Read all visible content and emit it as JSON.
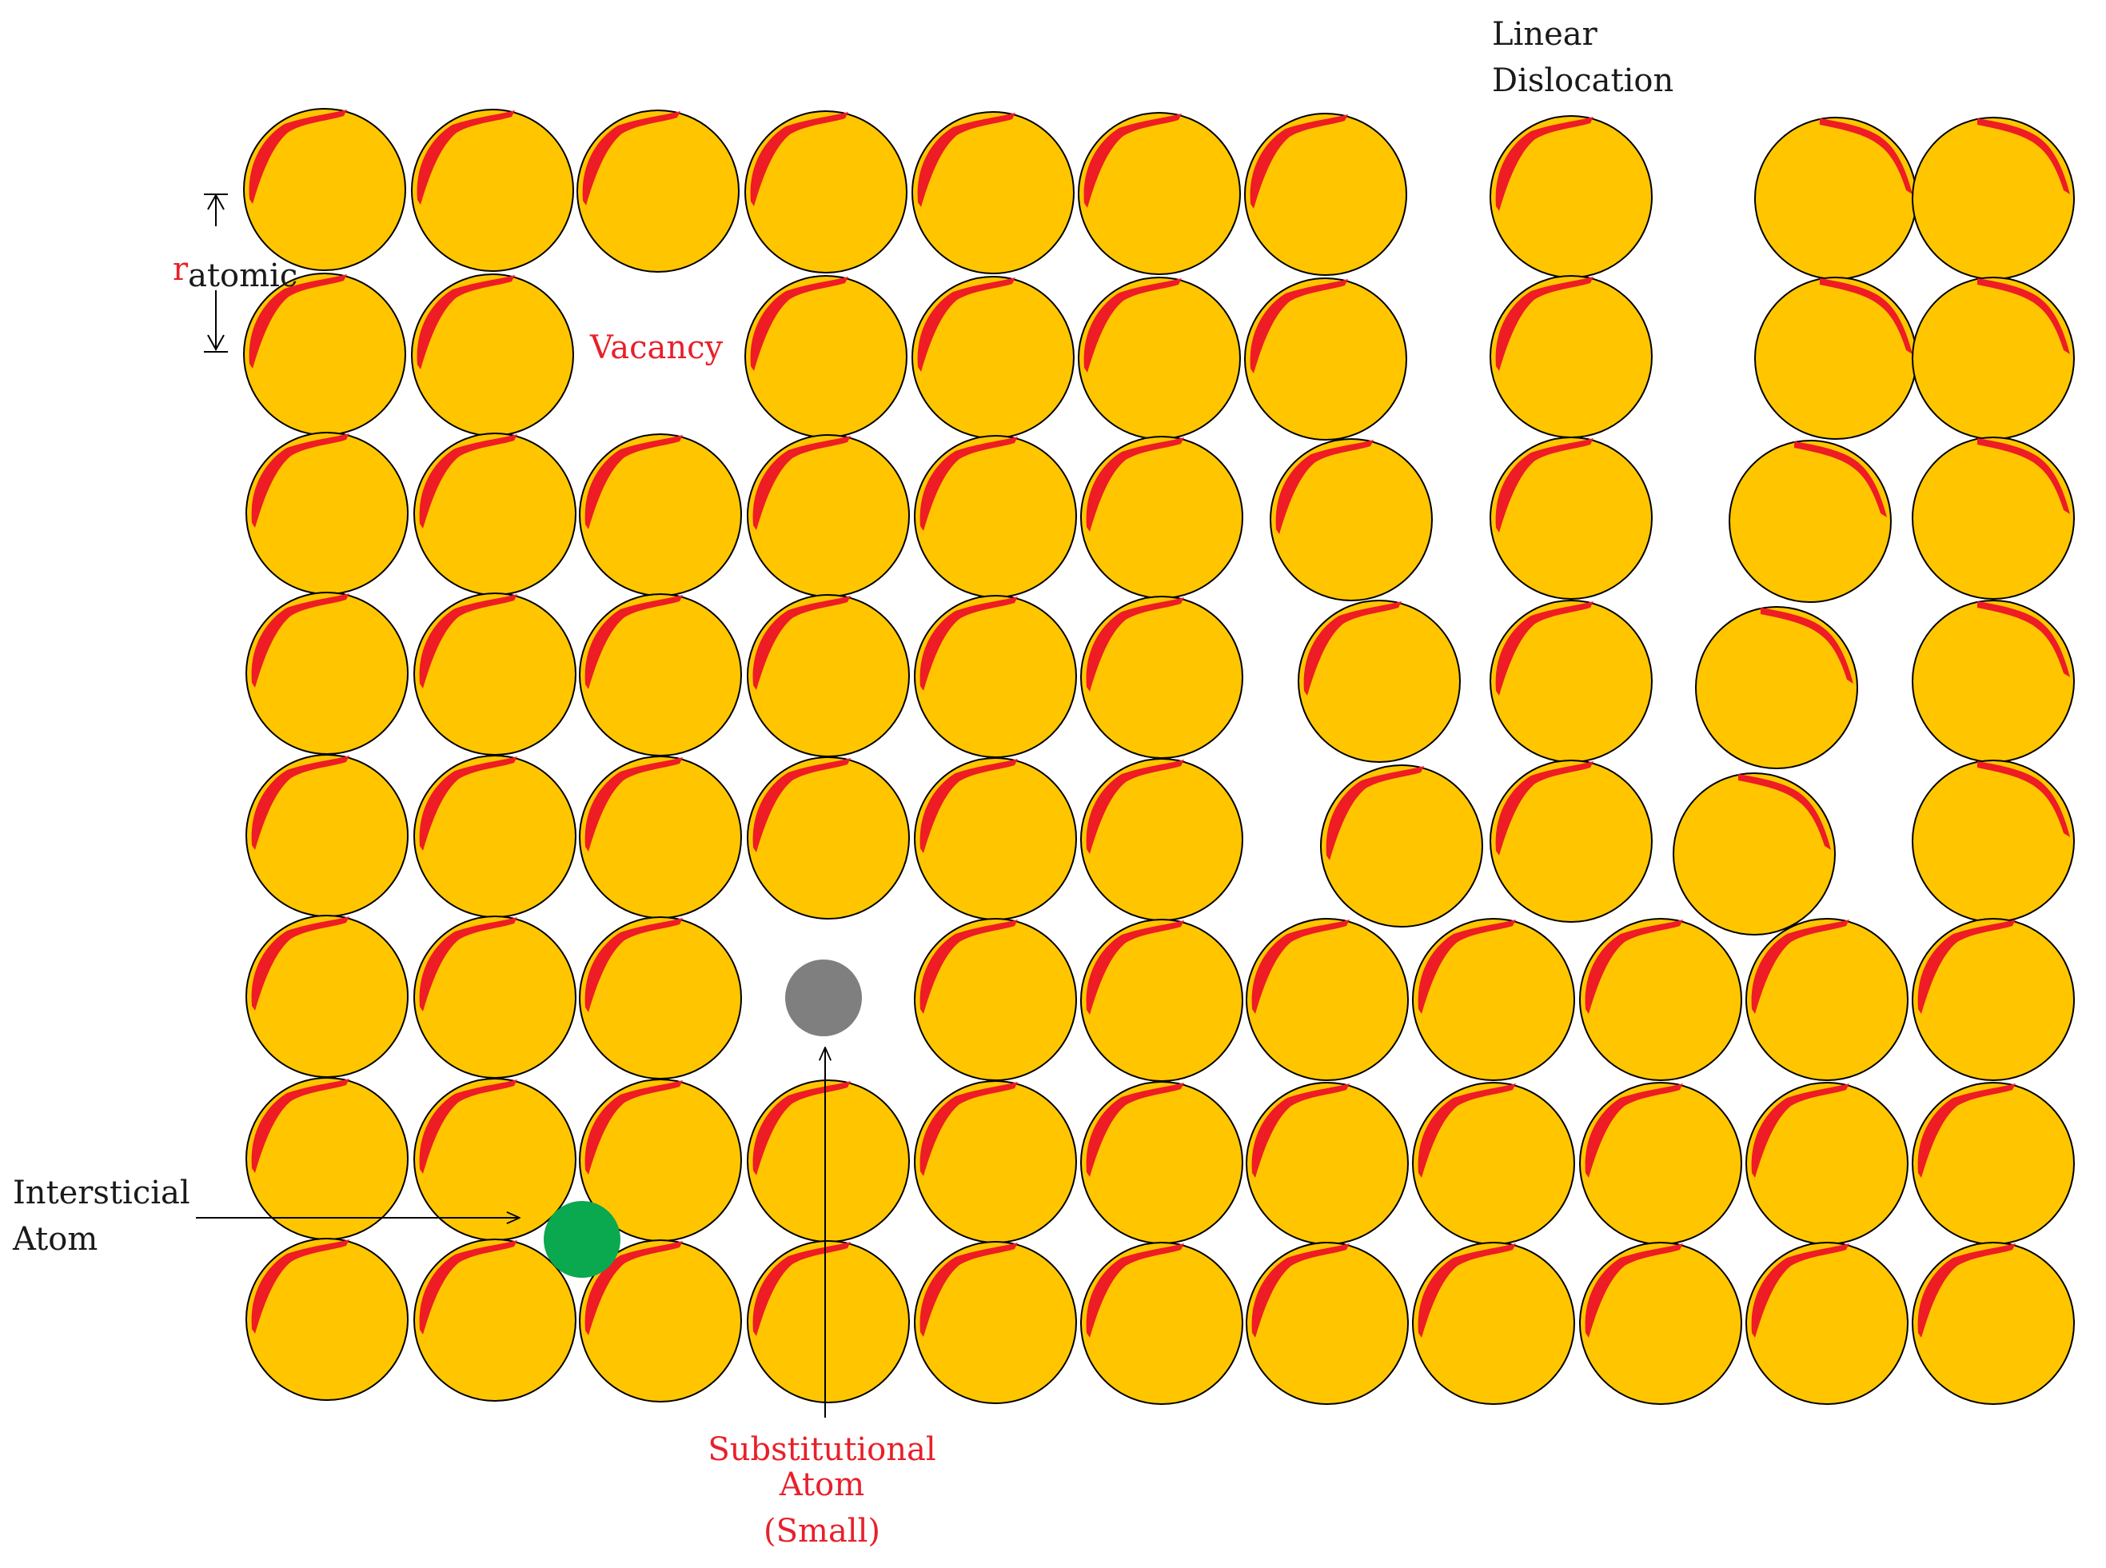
{
  "diagram": {
    "labels": {
      "linear_dislocation_line1": "Linear",
      "linear_dislocation_line2": "Dislocation",
      "vacancy": "Vacancy",
      "r_symbol": "r",
      "r_subscript": "atomic",
      "interstitial_line1": "Intersticial",
      "interstitial_line2": "Atom",
      "substitutional_line1": "Substitutional",
      "substitutional_line2": "Atom",
      "substitutional_line3": "(Small)"
    },
    "colors": {
      "atom_fill": "#ffc600",
      "atom_highlight": "#ee1c24",
      "atom_outline": "#000000",
      "interstitial_atom": "#0aa84f",
      "substitutional_atom": "#7f7f7f",
      "label_red": "#e8202a",
      "label_dark": "#1a1a1a"
    },
    "atom_icon": "gold-sphere-icon",
    "interstitial_icon": "green-atom-icon",
    "substitutional_icon": "gray-atom-icon"
  }
}
